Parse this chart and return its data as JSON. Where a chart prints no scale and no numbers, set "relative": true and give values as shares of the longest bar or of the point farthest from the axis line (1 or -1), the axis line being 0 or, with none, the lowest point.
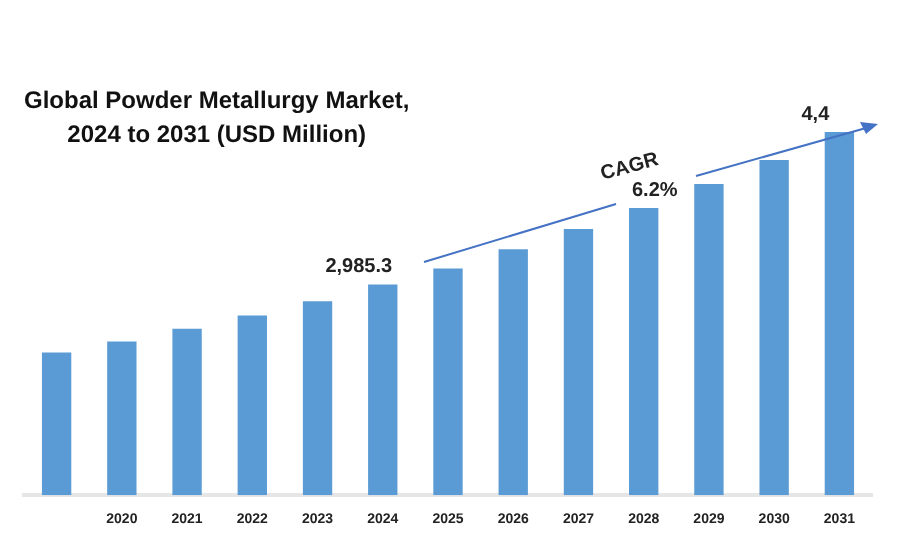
{
  "chart_data": {
    "type": "bar",
    "title": "Global Powder Metallurgy Market,\n2024 to 2031 (USD Million)",
    "categories": [
      null,
      "2020",
      "2021",
      "2022",
      "2023",
      "2024",
      "2025",
      "2026",
      "2027",
      "2028",
      "2029",
      "2030",
      "2031"
    ],
    "values": [
      0.393,
      0.423,
      0.458,
      0.495,
      0.534,
      0.58,
      0.624,
      0.677,
      0.733,
      0.791,
      0.857,
      0.923,
      1
    ],
    "relative": true,
    "color": "#5b9bd5",
    "tick_labels": "x",
    "annotations": [
      "CAGR\n6.2%",
      "2,985.3",
      "4,4"
    ]
  }
}
